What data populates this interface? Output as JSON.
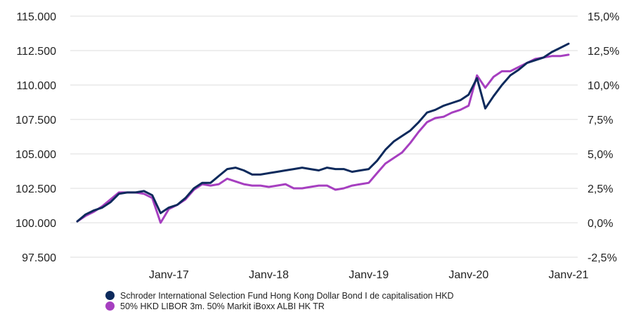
{
  "chart_data": {
    "type": "line",
    "x_tick_labels": [
      "Janv-17",
      "Janv-18",
      "Janv-19",
      "Janv-20",
      "Janv-21"
    ],
    "x_ticks": [
      "2017-01",
      "2018-01",
      "2019-01",
      "2020-01",
      "2021-01"
    ],
    "x_range": [
      "2016-02",
      "2021-01"
    ],
    "y_left": {
      "ticks": [
        "97.500",
        "100.000",
        "102.500",
        "105.000",
        "107.500",
        "110.000",
        "112.500",
        "115.000"
      ],
      "ylim": [
        97500,
        115000
      ]
    },
    "y_right": {
      "ticks": [
        "-2,5%",
        "0,0%",
        "2,5%",
        "5,0%",
        "7,5%",
        "10,0%",
        "12,5%",
        "15,0%"
      ],
      "ylim": [
        -2.5,
        15.0
      ]
    },
    "grid": true,
    "legend_position": "bottom",
    "series": [
      {
        "name": "Schroder International Selection Fund Hong Kong Dollar Bond I de capitalisation HKD",
        "color": "#0d2a5c",
        "x": [
          "2016-02",
          "2016-03",
          "2016-04",
          "2016-05",
          "2016-06",
          "2016-07",
          "2016-08",
          "2016-09",
          "2016-10",
          "2016-11",
          "2016-12",
          "2017-01",
          "2017-02",
          "2017-03",
          "2017-04",
          "2017-05",
          "2017-06",
          "2017-07",
          "2017-08",
          "2017-09",
          "2017-10",
          "2017-11",
          "2017-12",
          "2018-01",
          "2018-02",
          "2018-03",
          "2018-04",
          "2018-05",
          "2018-06",
          "2018-07",
          "2018-08",
          "2018-09",
          "2018-10",
          "2018-11",
          "2018-12",
          "2019-01",
          "2019-02",
          "2019-03",
          "2019-04",
          "2019-05",
          "2019-06",
          "2019-07",
          "2019-08",
          "2019-09",
          "2019-10",
          "2019-11",
          "2019-12",
          "2020-01",
          "2020-02",
          "2020-03",
          "2020-04",
          "2020-05",
          "2020-06",
          "2020-07",
          "2020-08",
          "2020-09",
          "2020-10",
          "2020-11",
          "2020-12",
          "2021-01"
        ],
        "values": [
          100100,
          100600,
          100900,
          101100,
          101500,
          102100,
          102200,
          102200,
          102300,
          102000,
          100700,
          101100,
          101300,
          101800,
          102500,
          102900,
          102900,
          103400,
          103900,
          104000,
          103800,
          103500,
          103500,
          103600,
          103700,
          103800,
          103900,
          104000,
          103900,
          103800,
          104000,
          103900,
          103900,
          103700,
          103800,
          103900,
          104500,
          105300,
          105900,
          106300,
          106700,
          107300,
          108000,
          108200,
          108500,
          108700,
          108900,
          109300,
          110500,
          108300,
          109200,
          110000,
          110700,
          111100,
          111600,
          111800,
          112000,
          112400,
          112700,
          113000
        ]
      },
      {
        "name": "50% HKD LIBOR 3m. 50% Markit iBoxx ALBI HK TR",
        "color": "#a63fc0",
        "x": [
          "2016-02",
          "2016-03",
          "2016-04",
          "2016-05",
          "2016-06",
          "2016-07",
          "2016-08",
          "2016-09",
          "2016-10",
          "2016-11",
          "2016-12",
          "2017-01",
          "2017-02",
          "2017-03",
          "2017-04",
          "2017-05",
          "2017-06",
          "2017-07",
          "2017-08",
          "2017-09",
          "2017-10",
          "2017-11",
          "2017-12",
          "2018-01",
          "2018-02",
          "2018-03",
          "2018-04",
          "2018-05",
          "2018-06",
          "2018-07",
          "2018-08",
          "2018-09",
          "2018-10",
          "2018-11",
          "2018-12",
          "2019-01",
          "2019-02",
          "2019-03",
          "2019-04",
          "2019-05",
          "2019-06",
          "2019-07",
          "2019-08",
          "2019-09",
          "2019-10",
          "2019-11",
          "2019-12",
          "2020-01",
          "2020-02",
          "2020-03",
          "2020-04",
          "2020-05",
          "2020-06",
          "2020-07",
          "2020-08",
          "2020-09",
          "2020-10",
          "2020-11",
          "2020-12",
          "2021-01"
        ],
        "values": [
          100100,
          100500,
          100800,
          101200,
          101700,
          102200,
          102200,
          102200,
          102100,
          101800,
          100000,
          101000,
          101300,
          101700,
          102400,
          102800,
          102700,
          102800,
          103200,
          103000,
          102800,
          102700,
          102700,
          102600,
          102700,
          102800,
          102500,
          102500,
          102600,
          102700,
          102700,
          102400,
          102500,
          102700,
          102800,
          102900,
          103600,
          104300,
          104700,
          105100,
          105800,
          106600,
          107300,
          107600,
          107700,
          108000,
          108200,
          108500,
          110700,
          109800,
          110600,
          111000,
          111000,
          111300,
          111600,
          111900,
          112000,
          112100,
          112100,
          112200
        ]
      }
    ]
  }
}
